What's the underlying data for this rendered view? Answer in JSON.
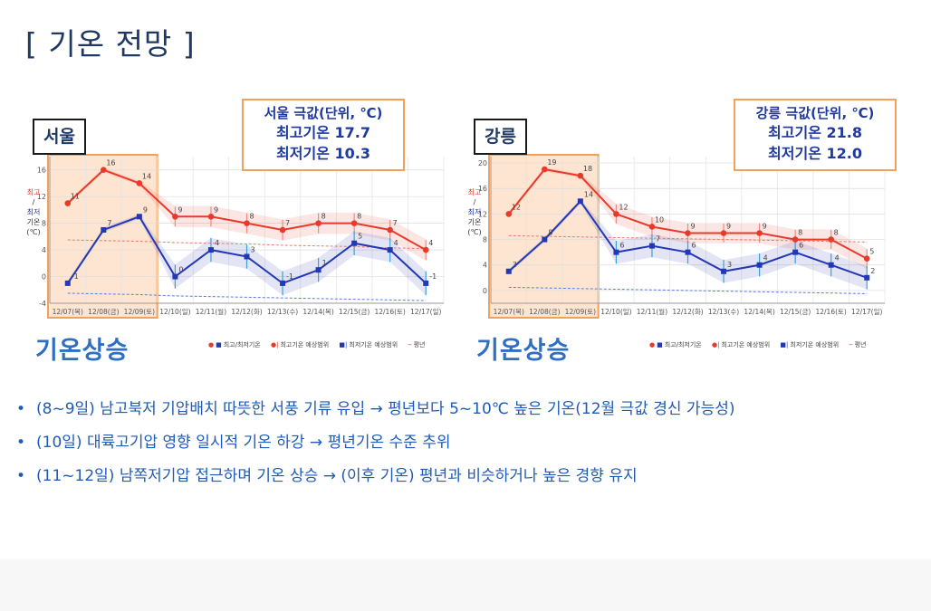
{
  "slide": {
    "title": "[ 기온 전망 ]",
    "rise_label": "기온상승"
  },
  "panels": [
    {
      "id": "seoul",
      "city": "서울",
      "extreme": {
        "title": "서울 극값(단위, ℃)",
        "max": "최고기온 17.7",
        "min": "최저기온 10.3"
      },
      "ylabel": [
        "최고",
        "/",
        "최저",
        "기온",
        "(℃)"
      ]
    },
    {
      "id": "gangneung",
      "city": "강릉",
      "extreme": {
        "title": "강릉 극값(단위, ℃)",
        "max": "최고기온 21.8",
        "min": "최저기온 12.0"
      },
      "ylabel": [
        "최고",
        "/",
        "최저",
        "기온",
        "(℃)"
      ]
    }
  ],
  "legend": [
    "최고/최저기온",
    "최고기온 예상범위",
    "최저기온 예상범위",
    "평년"
  ],
  "bullets": [
    "(8~9일) 남고북저 기압배치 따뜻한 서풍 기류 유입 → 평년보다 5~10℃ 높은 기온(12월 극값 경신 가능성)",
    "(10일) 대륙고기압 영향 일시적 기온 하강 → 평년기온 수준 추위",
    "(11~12일) 남쪽저기압 접근하며 기온 상승 → (이후 기온) 평년과 비슷하거나 높은 경향 유지"
  ],
  "colors": {
    "max": "#e83a2a",
    "min": "#2438b5",
    "highlight": "#fde5d2",
    "highlight_border": "#f2a05a",
    "title": "#1f3864",
    "bullet": "#1f5bb8",
    "normal_max": "#e87a6a",
    "normal_min": "#5a7be0"
  },
  "chart_data": [
    {
      "type": "line",
      "title": "서울",
      "categories": [
        "12/07(목)",
        "12/08(금)",
        "12/09(토)",
        "12/10(일)",
        "12/11(월)",
        "12/12(화)",
        "12/13(수)",
        "12/14(목)",
        "12/15(금)",
        "12/16(토)",
        "12/17(일)"
      ],
      "ylim": [
        -4,
        18
      ],
      "yticks": [
        -4,
        0,
        4,
        8,
        12,
        16
      ],
      "highlight_categories": [
        "12/07(목)",
        "12/08(금)",
        "12/09(토)"
      ],
      "series": [
        {
          "name": "최고기온",
          "values": [
            11,
            16,
            14,
            9,
            9,
            8,
            7,
            8,
            8,
            7,
            4
          ]
        },
        {
          "name": "최저기온",
          "values": [
            -1,
            7,
            9,
            0,
            4,
            3,
            -1,
            1,
            5,
            4,
            -1
          ]
        },
        {
          "name": "평년",
          "values": [
            5.5,
            5.4,
            5.3,
            5.1,
            5.0,
            4.9,
            4.7,
            4.6,
            4.5,
            4.3,
            4.2
          ]
        },
        {
          "name": "평년",
          "values": [
            -2.5,
            -2.6,
            -2.7,
            -2.9,
            -3.0,
            -3.1,
            -3.2,
            -3.3,
            -3.4,
            -3.5,
            -3.6
          ]
        }
      ]
    },
    {
      "type": "line",
      "title": "강릉",
      "categories": [
        "12/07(목)",
        "12/08(금)",
        "12/09(토)",
        "12/10(일)",
        "12/11(월)",
        "12/12(화)",
        "12/13(수)",
        "12/14(목)",
        "12/15(금)",
        "12/16(토)",
        "12/17(일)"
      ],
      "ylim": [
        -2,
        21
      ],
      "yticks": [
        0,
        4,
        8,
        12,
        16,
        20
      ],
      "highlight_categories": [
        "12/07(목)",
        "12/08(금)",
        "12/09(토)"
      ],
      "series": [
        {
          "name": "최고기온",
          "values": [
            12,
            19,
            18,
            12,
            10,
            9,
            9,
            9,
            8,
            8,
            5
          ]
        },
        {
          "name": "최저기온",
          "values": [
            3,
            8,
            14,
            6,
            7,
            6,
            3,
            4,
            6,
            4,
            2
          ]
        },
        {
          "name": "평년",
          "values": [
            8.6,
            8.5,
            8.4,
            8.3,
            8.2,
            8.1,
            8.0,
            7.9,
            7.8,
            7.7,
            7.6
          ]
        },
        {
          "name": "평년",
          "values": [
            0.5,
            0.4,
            0.3,
            0.2,
            0.1,
            0.0,
            -0.1,
            -0.2,
            -0.3,
            -0.4,
            -0.5
          ]
        }
      ]
    }
  ]
}
